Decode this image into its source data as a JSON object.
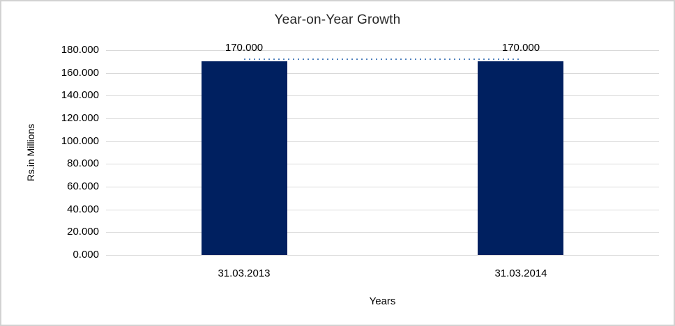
{
  "chart_data": {
    "type": "bar",
    "title": "Year-on-Year Growth",
    "xlabel": "Years",
    "ylabel": "Rs.in Millions",
    "categories": [
      "31.03.2013",
      "31.03.2014"
    ],
    "values": [
      170,
      170
    ],
    "data_labels": [
      "170.000",
      "170.000"
    ],
    "ylim": [
      0,
      180
    ],
    "ytick_values": [
      0,
      20,
      40,
      60,
      80,
      100,
      120,
      140,
      160,
      180
    ],
    "ytick_labels": [
      "0.000",
      "20.000",
      "40.000",
      "60.000",
      "80.000",
      "100.000",
      "120.000",
      "140.000",
      "160.000",
      "180.000"
    ],
    "grid": true,
    "legend": "none",
    "series_line_connecting_bar_tops": true,
    "colors": {
      "bar": "#002060",
      "series_line": "#4F81BD",
      "gridline": "#D9D9D9",
      "frame_border": "#D2D2D2",
      "title_text": "#262626",
      "axis_text": "#000000"
    }
  }
}
